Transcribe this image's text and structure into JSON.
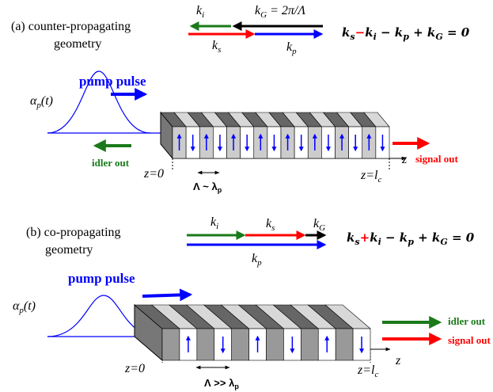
{
  "panel_a": {
    "label": [
      "(a) counter-propagating",
      "geometry"
    ],
    "ki": [
      "k",
      "i"
    ],
    "kG": [
      "k",
      "G",
      " = 2π/Λ"
    ],
    "ks": [
      "k",
      "s"
    ],
    "kp": [
      "k",
      "p"
    ],
    "equation": {
      "ks": [
        "k",
        "s"
      ],
      "op1": "−",
      "ki": [
        "k",
        "i"
      ],
      "op2": " − ",
      "kp": [
        "k",
        "p"
      ],
      "op3": " + ",
      "kG": [
        "k",
        "G"
      ],
      "rhs": " = 0"
    },
    "pump": "pump pulse",
    "alpha": [
      "α",
      "p",
      "(t)"
    ],
    "idler": "idler out",
    "signal": "signal out",
    "z0": "z=0",
    "zl": [
      "z=l",
      "c"
    ],
    "z": "z",
    "period": [
      "Λ ~ λ",
      "p"
    ]
  },
  "panel_b": {
    "label": [
      "(b) co-propagating",
      "geometry"
    ],
    "ki": [
      "k",
      "i"
    ],
    "ks": [
      "k",
      "s"
    ],
    "kG": [
      "k",
      "G"
    ],
    "kp": [
      "k",
      "p"
    ],
    "equation": {
      "ks": [
        "k",
        "s"
      ],
      "op1": "+",
      "ki": [
        "k",
        "i"
      ],
      "op2": " − ",
      "kp": [
        "k",
        "p"
      ],
      "op3": " + ",
      "kG": [
        "k",
        "G"
      ],
      "rhs": " = 0"
    },
    "pump": "pump pulse",
    "alpha": [
      "α",
      "p",
      "(t)"
    ],
    "idler": "idler out",
    "signal": "signal out",
    "z0": "z=0",
    "zl": [
      "z=l",
      "c"
    ],
    "z": "z",
    "period": [
      "Λ >> λ",
      "p"
    ]
  }
}
